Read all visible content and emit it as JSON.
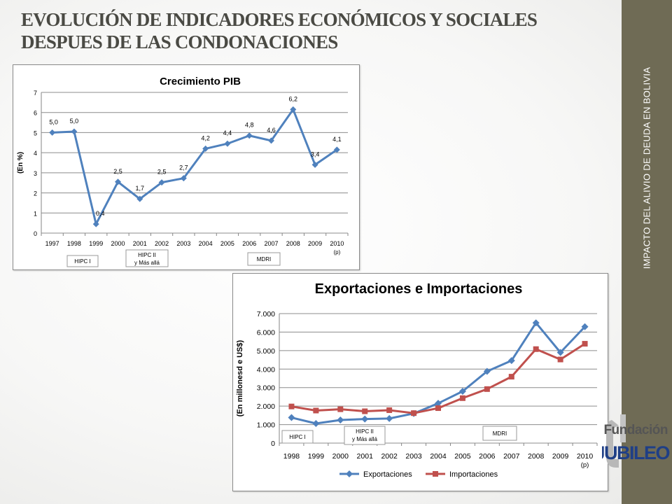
{
  "slide": {
    "title": "EVOLUCIÓN DE INDICADORES ECONÓMICOS Y SOCIALES DESPUES DE LAS CONDONACIONES",
    "side_label": "IMPACTO DEL ALIVIO DE DEUDA EN BOLIVIA",
    "logo_text_top": "Fundación",
    "logo_text_bottom": "JUBILEO",
    "band_color": "#6f6b55"
  },
  "chart_data": [
    {
      "type": "line",
      "title": "Crecimiento PIB",
      "ylabel": "(En %)",
      "xlabel": "",
      "ylim": [
        0,
        7
      ],
      "yticks": [
        "0",
        "1",
        "2",
        "3",
        "4",
        "5",
        "6",
        "7"
      ],
      "categories": [
        "1997",
        "1998",
        "1999",
        "2000",
        "2001",
        "2002",
        "2003",
        "2004",
        "2005",
        "2006",
        "2007",
        "2008",
        "2009",
        "2010"
      ],
      "category_note": "(p)",
      "series": [
        {
          "values": [
            5.0,
            5.0,
            0.4,
            2.5,
            1.7,
            2.5,
            2.7,
            4.2,
            4.4,
            4.8,
            4.6,
            6.2,
            3.4,
            4.1
          ],
          "labels": [
            "5,0",
            "5,0",
            "0,4",
            "2,5",
            "1,7",
            "2,5",
            "2,7",
            "4,2",
            "4,4",
            "4,8",
            "4,6",
            "6,2",
            "3,4",
            "4,1"
          ],
          "plot_values": [
            5.0,
            5.05,
            0.45,
            2.55,
            1.7,
            2.52,
            2.73,
            4.2,
            4.45,
            4.85,
            4.6,
            6.15,
            3.4,
            4.15
          ],
          "color": "#4f81bd",
          "marker": "diamond"
        }
      ],
      "annotations": [
        "HIPC I",
        "HIPC II y Más allá",
        "MDRI"
      ],
      "grid": true,
      "legend": "none"
    },
    {
      "type": "line",
      "title": "Exportaciones e Importaciones",
      "ylabel": "(En millonesd e US$)",
      "xlabel": "",
      "ylim": [
        0,
        7000
      ],
      "yticks": [
        "0",
        "1.000",
        "2.000",
        "3.000",
        "4.000",
        "5.000",
        "6.000",
        "7.000"
      ],
      "categories": [
        "1998",
        "1999",
        "2000",
        "2001",
        "2002",
        "2003",
        "2004",
        "2005",
        "2006",
        "2007",
        "2008",
        "2009",
        "2010"
      ],
      "category_note": "(p)",
      "series": [
        {
          "name": "Exportaciones",
          "values": [
            1380,
            1060,
            1250,
            1300,
            1330,
            1600,
            2150,
            2800,
            3880,
            4460,
            6500,
            4900,
            6290
          ],
          "color": "#4f81bd",
          "marker": "diamond"
        },
        {
          "name": "Importaciones",
          "values": [
            1980,
            1760,
            1830,
            1720,
            1780,
            1620,
            1890,
            2430,
            2920,
            3590,
            5080,
            4520,
            5370
          ],
          "color": "#c0504d",
          "marker": "square"
        }
      ],
      "annotations": [
        "HIPC I",
        "HIPC II y Más allá",
        "MDRI"
      ],
      "grid": true,
      "legend": "bottom"
    }
  ]
}
